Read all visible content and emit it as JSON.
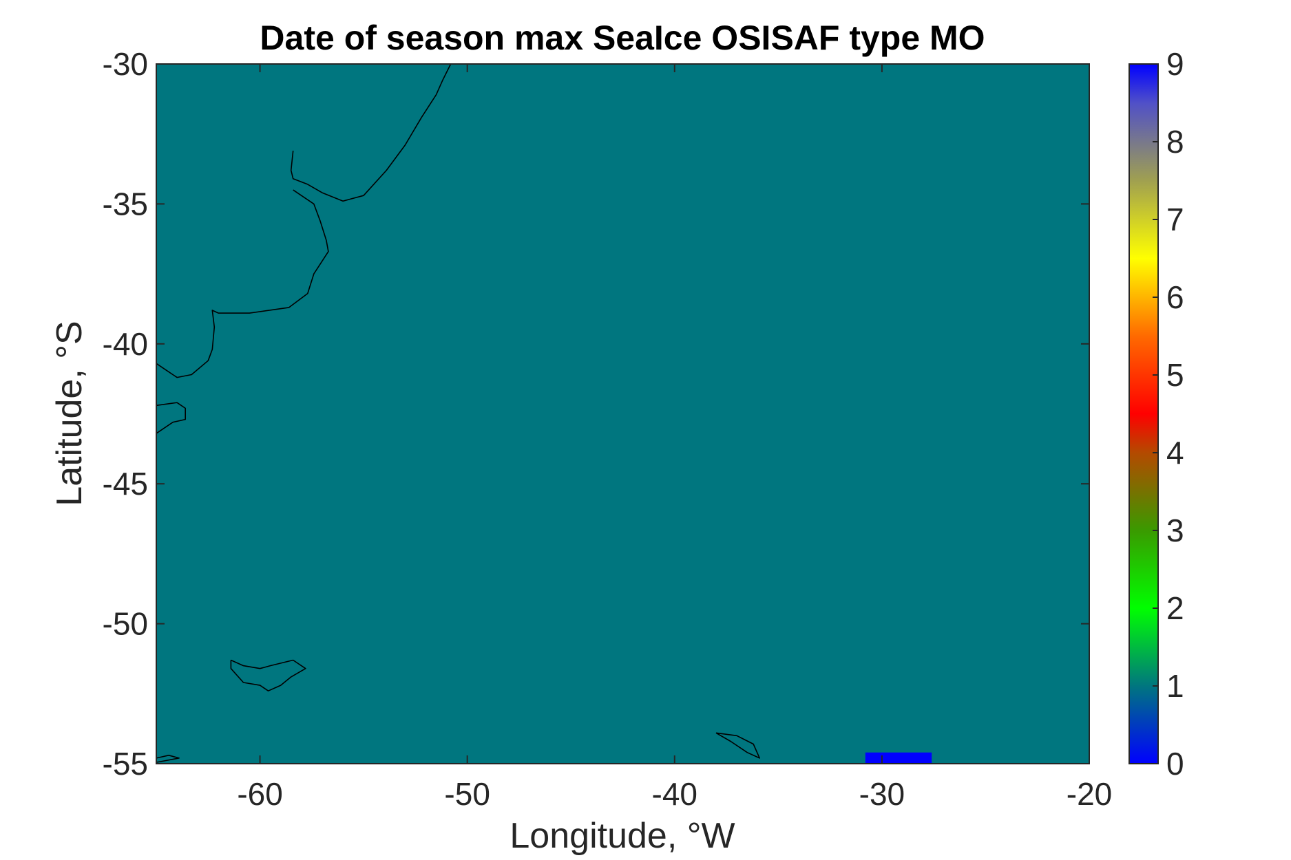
{
  "chart_data": {
    "type": "heatmap",
    "title": "Date of season max SeaIce OSISAF type MO",
    "xlabel": "Longitude, °W",
    "ylabel": "Latitude, °S",
    "xlim": [
      -65,
      -20
    ],
    "ylim": [
      -55,
      -30
    ],
    "xticks": [
      -60,
      -50,
      -40,
      -30,
      -20
    ],
    "yticks": [
      -30,
      -35,
      -40,
      -45,
      -50,
      -55
    ],
    "background_value": 1,
    "colors": {
      "field": "#00767f",
      "high_region": "#0000ff",
      "coastline": "#000000"
    },
    "regions": [
      {
        "value": 0,
        "lon_range": [
          -30.8,
          -27.6
        ],
        "lat_range": [
          -55,
          -54.6
        ]
      }
    ],
    "colorbar": {
      "range": [
        0,
        9
      ],
      "ticks": [
        0,
        1,
        2,
        3,
        4,
        5,
        6,
        7,
        8,
        9
      ],
      "stops": [
        {
          "value": 0,
          "color": "#0000ff"
        },
        {
          "value": 1,
          "color": "#00767f"
        },
        {
          "value": 2,
          "color": "#00ff00"
        },
        {
          "value": 3,
          "color": "#3a9a00"
        },
        {
          "value": 4,
          "color": "#b44a00"
        },
        {
          "value": 4.5,
          "color": "#ff0000"
        },
        {
          "value": 5.5,
          "color": "#ff6a00"
        },
        {
          "value": 6.5,
          "color": "#ffff00"
        },
        {
          "value": 7.5,
          "color": "#a0a050"
        },
        {
          "value": 8.5,
          "color": "#5050c8"
        },
        {
          "value": 9,
          "color": "#0000ff"
        }
      ]
    },
    "coastlines": [
      [
        [
          -50.8,
          -30
        ],
        [
          -51.2,
          -30.6
        ],
        [
          -51.5,
          -31.1
        ],
        [
          -52.2,
          -31.9
        ],
        [
          -53.0,
          -32.9
        ],
        [
          -53.9,
          -33.8
        ],
        [
          -55.0,
          -34.7
        ],
        [
          -56.0,
          -34.9
        ],
        [
          -57.0,
          -34.6
        ],
        [
          -57.7,
          -34.3
        ],
        [
          -58.4,
          -34.1
        ],
        [
          -58.5,
          -33.8
        ],
        [
          -58.4,
          -33.1
        ]
      ],
      [
        [
          -58.4,
          -34.5
        ],
        [
          -57.4,
          -35.0
        ],
        [
          -57.1,
          -35.6
        ],
        [
          -56.8,
          -36.3
        ],
        [
          -56.7,
          -36.7
        ],
        [
          -57.4,
          -37.5
        ],
        [
          -57.7,
          -38.2
        ],
        [
          -58.6,
          -38.7
        ],
        [
          -60.5,
          -38.9
        ],
        [
          -62.0,
          -38.9
        ],
        [
          -62.3,
          -38.8
        ],
        [
          -62.2,
          -39.4
        ],
        [
          -62.3,
          -40.2
        ],
        [
          -62.5,
          -40.6
        ],
        [
          -63.3,
          -41.1
        ],
        [
          -64.0,
          -41.2
        ],
        [
          -64.6,
          -40.9
        ],
        [
          -65,
          -40.7
        ]
      ],
      [
        [
          -65,
          -42.2
        ],
        [
          -64.0,
          -42.1
        ],
        [
          -63.6,
          -42.3
        ],
        [
          -63.6,
          -42.7
        ],
        [
          -64.2,
          -42.8
        ],
        [
          -65,
          -43.2
        ]
      ],
      [
        [
          -61.4,
          -51.3
        ],
        [
          -60.8,
          -51.5
        ],
        [
          -60.0,
          -51.6
        ],
        [
          -59.5,
          -51.5
        ],
        [
          -58.4,
          -51.3
        ],
        [
          -57.8,
          -51.6
        ],
        [
          -58.5,
          -51.9
        ],
        [
          -59.0,
          -52.2
        ],
        [
          -59.6,
          -52.4
        ],
        [
          -60.0,
          -52.2
        ],
        [
          -60.8,
          -52.1
        ],
        [
          -61.4,
          -51.6
        ],
        [
          -61.4,
          -51.3
        ]
      ],
      [
        [
          -38.0,
          -53.9
        ],
        [
          -37.0,
          -54.0
        ],
        [
          -36.2,
          -54.3
        ],
        [
          -35.9,
          -54.8
        ],
        [
          -36.5,
          -54.6
        ],
        [
          -37.3,
          -54.2
        ],
        [
          -38.0,
          -53.9
        ]
      ],
      [
        [
          -65,
          -54.8
        ],
        [
          -64.4,
          -54.7
        ],
        [
          -63.9,
          -54.8
        ],
        [
          -64.6,
          -54.9
        ],
        [
          -65,
          -54.95
        ]
      ]
    ]
  }
}
